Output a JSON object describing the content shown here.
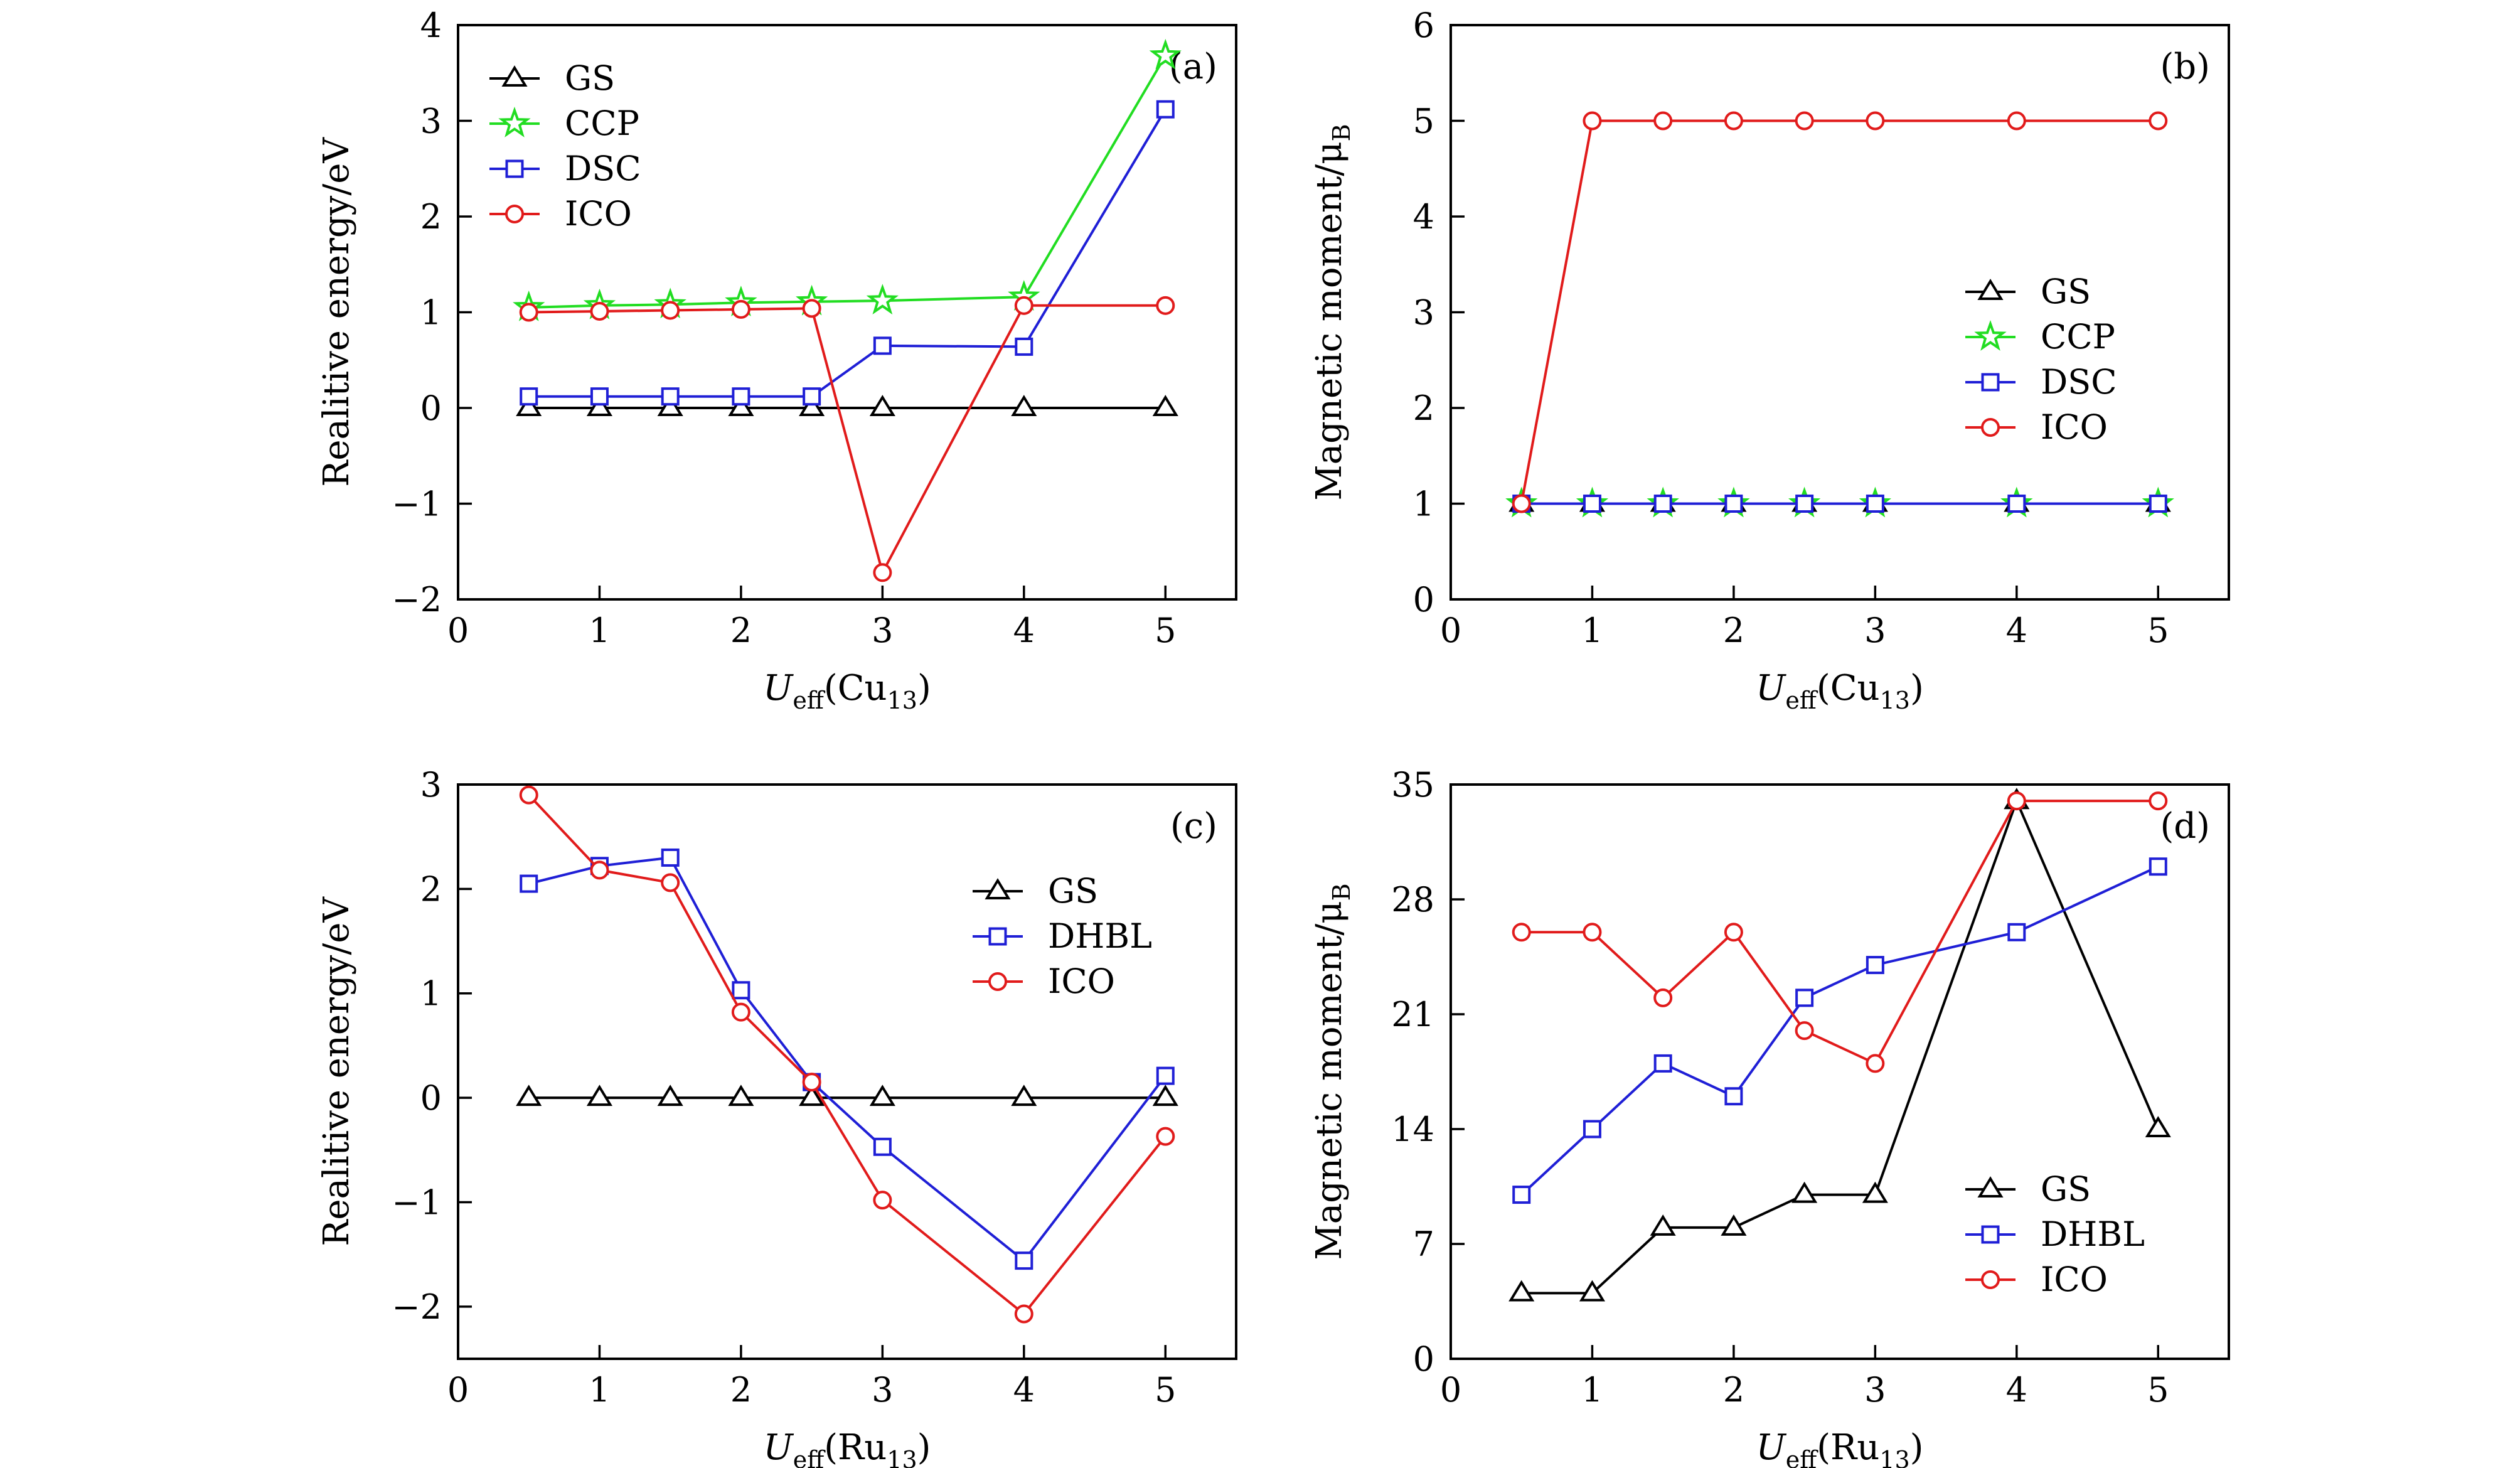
{
  "chart_data": [
    {
      "panel": "(a)",
      "type": "line",
      "xlabel": "U_eff(Cu_13)",
      "ylabel": "Realitive energy/eV",
      "xlim": [
        0,
        5.5
      ],
      "ylim": [
        -2,
        4
      ],
      "xticks": [
        0,
        1,
        2,
        3,
        4,
        5
      ],
      "yticks": [
        -2,
        -1,
        0,
        1,
        2,
        3,
        4
      ],
      "legend_position": "top-left",
      "x": [
        0.5,
        1,
        1.5,
        2,
        2.5,
        3,
        4,
        5
      ],
      "series": [
        {
          "name": "GS",
          "marker": "triangle",
          "color": "#000000",
          "values": [
            0,
            0,
            0,
            0,
            0,
            0,
            0,
            0
          ]
        },
        {
          "name": "CCP",
          "marker": "star",
          "color": "#22dd22",
          "values": [
            1.05,
            1.07,
            1.08,
            1.1,
            1.11,
            1.12,
            1.16,
            3.68
          ]
        },
        {
          "name": "DSC",
          "marker": "square",
          "color": "#1f1fd6",
          "values": [
            0.12,
            0.12,
            0.12,
            0.12,
            0.12,
            0.65,
            0.64,
            3.12
          ]
        },
        {
          "name": "ICO",
          "marker": "circle",
          "color": "#e11b1b",
          "values": [
            1.0,
            1.01,
            1.02,
            1.03,
            1.04,
            -1.72,
            1.07,
            1.07
          ]
        }
      ]
    },
    {
      "panel": "(b)",
      "type": "line",
      "xlabel": "U_eff(Cu_13)",
      "ylabel": "Magnetic moment/μ_B",
      "xlim": [
        0,
        5.5
      ],
      "ylim": [
        0,
        6
      ],
      "xticks": [
        0,
        1,
        2,
        3,
        4,
        5
      ],
      "yticks": [
        0,
        1,
        2,
        3,
        4,
        5,
        6
      ],
      "legend_position": "center-right",
      "x": [
        0.5,
        1,
        1.5,
        2,
        2.5,
        3,
        4,
        5
      ],
      "series": [
        {
          "name": "GS",
          "marker": "triangle",
          "color": "#000000",
          "values": [
            1,
            1,
            1,
            1,
            1,
            1,
            1,
            1
          ]
        },
        {
          "name": "CCP",
          "marker": "star",
          "color": "#22dd22",
          "values": [
            1,
            1,
            1,
            1,
            1,
            1,
            1,
            1
          ]
        },
        {
          "name": "DSC",
          "marker": "square",
          "color": "#1f1fd6",
          "values": [
            1,
            1,
            1,
            1,
            1,
            1,
            1,
            1
          ]
        },
        {
          "name": "ICO",
          "marker": "circle",
          "color": "#e11b1b",
          "values": [
            1,
            5,
            5,
            5,
            5,
            5,
            5,
            5
          ]
        }
      ]
    },
    {
      "panel": "(c)",
      "type": "line",
      "xlabel": "U_eff(Ru_13)",
      "ylabel": "Realitive energy/eV",
      "xlim": [
        0,
        5.5
      ],
      "ylim": [
        -2.5,
        3
      ],
      "xticks": [
        0,
        1,
        2,
        3,
        4,
        5
      ],
      "yticks": [
        -2,
        -1,
        0,
        1,
        2,
        3
      ],
      "legend_position": "center-right",
      "x": [
        0.5,
        1,
        1.5,
        2,
        2.5,
        3,
        4,
        5
      ],
      "series": [
        {
          "name": "GS",
          "marker": "triangle",
          "color": "#000000",
          "values": [
            0,
            0,
            0,
            0,
            0,
            0,
            0,
            0
          ]
        },
        {
          "name": "DHBL",
          "marker": "square",
          "color": "#1f1fd6",
          "values": [
            2.05,
            2.22,
            2.3,
            1.03,
            0.15,
            -0.47,
            -1.56,
            0.21
          ]
        },
        {
          "name": "ICO",
          "marker": "circle",
          "color": "#e11b1b",
          "values": [
            2.9,
            2.18,
            2.06,
            0.82,
            0.15,
            -0.98,
            -2.07,
            -0.37
          ]
        }
      ]
    },
    {
      "panel": "(d)",
      "type": "line",
      "xlabel": "U_eff(Ru_13)",
      "ylabel": "Magnetic moment/μ_B",
      "xlim": [
        0,
        5.5
      ],
      "ylim": [
        0,
        35
      ],
      "xticks": [
        0,
        1,
        2,
        3,
        4,
        5
      ],
      "yticks": [
        0,
        7,
        14,
        21,
        28,
        35
      ],
      "legend_position": "bottom-right",
      "x": [
        0.5,
        1,
        1.5,
        2,
        2.5,
        3,
        4,
        5
      ],
      "series": [
        {
          "name": "GS",
          "marker": "triangle",
          "color": "#000000",
          "values": [
            4,
            4,
            8,
            8,
            10,
            10,
            34,
            14
          ]
        },
        {
          "name": "DHBL",
          "marker": "square",
          "color": "#1f1fd6",
          "values": [
            10,
            14,
            18,
            16,
            22,
            24,
            26,
            30
          ]
        },
        {
          "name": "ICO",
          "marker": "circle",
          "color": "#e11b1b",
          "values": [
            26,
            26,
            22,
            26,
            20,
            18,
            34,
            34
          ]
        }
      ]
    }
  ]
}
